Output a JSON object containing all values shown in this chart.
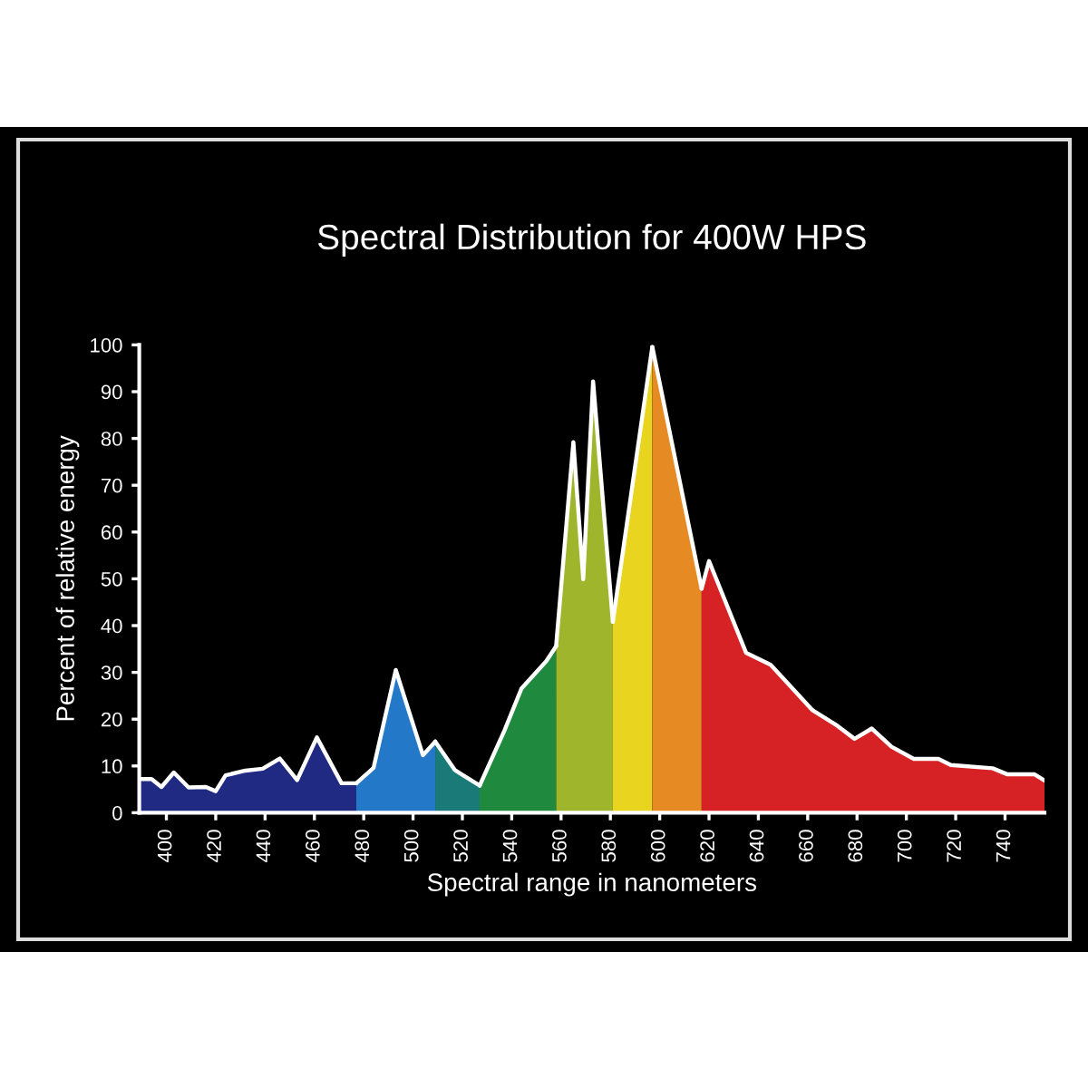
{
  "chart_data": {
    "type": "area",
    "title": "Spectral Distribution for 400W HPS",
    "xlabel": "Spectral range in nanometers",
    "ylabel": "Percent of relative energy",
    "xlim": [
      389,
      756
    ],
    "ylim": [
      0,
      100
    ],
    "xticks": [
      400,
      420,
      440,
      460,
      480,
      500,
      520,
      540,
      560,
      580,
      600,
      620,
      640,
      660,
      680,
      700,
      720,
      740
    ],
    "yticks": [
      0,
      10,
      20,
      30,
      40,
      50,
      60,
      70,
      80,
      90,
      100
    ],
    "grid": false,
    "legend": false,
    "series": [
      {
        "color": "#202a82",
        "x": [
          389,
          394,
          398,
          403,
          409,
          416,
          420,
          424,
          432,
          439,
          446,
          453,
          461,
          471,
          477
        ],
        "values": [
          7.2,
          7.2,
          5.5,
          8.6,
          5.4,
          5.5,
          4.6,
          8.0,
          9.0,
          9.4,
          11.6,
          7.0,
          16.1,
          6.3,
          6.3
        ]
      },
      {
        "color": "#2478c8",
        "x": [
          477,
          484,
          493,
          504,
          509
        ],
        "values": [
          6.3,
          9.6,
          30.5,
          12.3,
          15.2
        ]
      },
      {
        "color": "#1a7a78",
        "x": [
          509,
          517,
          527
        ],
        "values": [
          15.2,
          9.1,
          5.8
        ]
      },
      {
        "color": "#1f8a3e",
        "x": [
          527,
          537,
          544,
          554,
          558
        ],
        "values": [
          5.8,
          17.5,
          26.6,
          32.4,
          35.6
        ]
      },
      {
        "color": "#9fb52c",
        "x": [
          558,
          565,
          569,
          573,
          581
        ],
        "values": [
          35.6,
          79.2,
          49.9,
          92.2,
          40.8
        ]
      },
      {
        "color": "#e9d420",
        "x": [
          581,
          597
        ],
        "values": [
          40.8,
          99.6
        ]
      },
      {
        "color": "#e68a24",
        "x": [
          597,
          617
        ],
        "values": [
          99.6,
          47.9
        ]
      },
      {
        "color": "#d62224",
        "x": [
          617,
          620,
          635,
          645,
          662,
          672,
          679,
          686,
          694,
          703,
          713,
          718,
          735,
          741,
          752,
          756
        ],
        "values": [
          47.9,
          53.8,
          34.2,
          31.6,
          21.9,
          18.6,
          15.8,
          18.0,
          14.1,
          11.5,
          11.5,
          10.2,
          9.5,
          8.2,
          8.2,
          6.9
        ]
      }
    ]
  }
}
